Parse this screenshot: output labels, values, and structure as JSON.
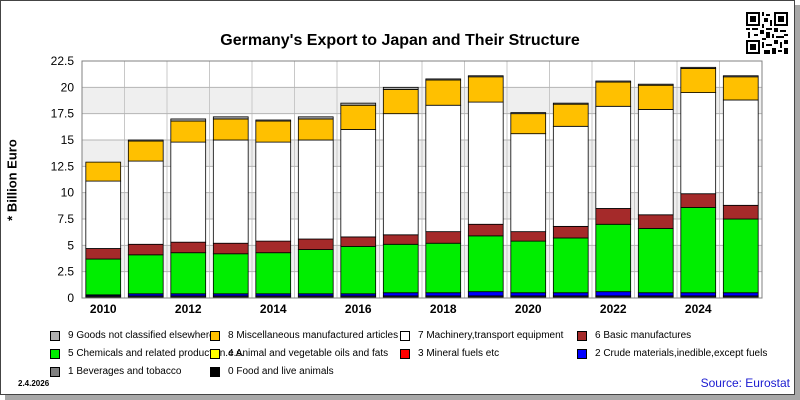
{
  "colors": {
    "cat9": "#b0b0b0",
    "cat8": "#ffc000",
    "cat7": "#ffffff",
    "cat6": "#a52a2a",
    "cat5": "#00ee00",
    "cat4": "#ffff00",
    "cat3": "#ff0000",
    "cat2": "#0000ff",
    "cat1": "#808080",
    "cat0": "#000000",
    "source": "#1a1ad0"
  },
  "footer": {
    "date": "2.4.2026",
    "source": "Source: Eurostat"
  },
  "qr_icon": "qr-code-icon",
  "chart_data": {
    "type": "bar",
    "stacked": true,
    "title": "Germany's Export to Japan and Their Structure",
    "ylabel": "* Billion Euro",
    "xlabel": "",
    "ylim": [
      0,
      22.5
    ],
    "yticks": [
      0,
      2.5,
      5,
      7.5,
      10,
      12.5,
      15,
      17.5,
      20,
      22.5
    ],
    "grid": true,
    "legend_position": "bottom",
    "categories": [
      "2010",
      "2011",
      "2012",
      "2013",
      "2014",
      "2015",
      "2016",
      "2017",
      "2018",
      "2019",
      "2020",
      "2021",
      "2022",
      "2023",
      "2024",
      "2025"
    ],
    "x_tick_labels": [
      "2010",
      "",
      "2012",
      "",
      "2014",
      "",
      "2016",
      "",
      "2018",
      "",
      "2020",
      "",
      "2022",
      "",
      "2024",
      ""
    ],
    "series": [
      {
        "name": "0 Food and live animals",
        "key": "cat0",
        "values": [
          0.1,
          0.1,
          0.1,
          0.1,
          0.1,
          0.1,
          0.1,
          0.1,
          0.1,
          0.1,
          0.1,
          0.1,
          0.1,
          0.1,
          0.1,
          0.1
        ]
      },
      {
        "name": "1 Beverages and tobacco",
        "key": "cat1",
        "values": [
          0.1,
          0.1,
          0.1,
          0.1,
          0.1,
          0.1,
          0.1,
          0.1,
          0.1,
          0.1,
          0.1,
          0.1,
          0.1,
          0.1,
          0.1,
          0.1
        ]
      },
      {
        "name": "2 Crude materials,inedible,except fuels",
        "key": "cat2",
        "values": [
          0.1,
          0.2,
          0.2,
          0.2,
          0.2,
          0.2,
          0.2,
          0.3,
          0.3,
          0.4,
          0.3,
          0.3,
          0.4,
          0.3,
          0.3,
          0.3
        ]
      },
      {
        "name": "3 Mineral fuels etc",
        "key": "cat3",
        "values": [
          0,
          0,
          0,
          0,
          0,
          0,
          0,
          0,
          0,
          0,
          0,
          0,
          0,
          0,
          0,
          0
        ]
      },
      {
        "name": "4 Animal and vegetable oils and fats",
        "key": "cat4",
        "values": [
          0,
          0,
          0,
          0,
          0,
          0,
          0,
          0,
          0,
          0,
          0,
          0,
          0,
          0,
          0,
          0
        ]
      },
      {
        "name": "5 Chemicals and related products,n.e.s.",
        "key": "cat5",
        "values": [
          3.4,
          3.7,
          3.9,
          3.8,
          3.9,
          4.2,
          4.5,
          4.6,
          4.7,
          5.3,
          4.9,
          5.2,
          6.4,
          6.1,
          8.1,
          7.0
        ]
      },
      {
        "name": "6 Basic manufactures",
        "key": "cat6",
        "values": [
          1.0,
          1.0,
          1.0,
          1.0,
          1.1,
          1.0,
          0.9,
          0.9,
          1.1,
          1.1,
          0.9,
          1.1,
          1.5,
          1.3,
          1.3,
          1.3
        ]
      },
      {
        "name": "7 Machinery,transport equipment",
        "key": "cat7",
        "values": [
          6.4,
          7.9,
          9.5,
          9.8,
          9.4,
          9.4,
          10.2,
          11.5,
          12.0,
          11.6,
          9.3,
          9.5,
          9.7,
          10.0,
          9.6,
          10.0
        ]
      },
      {
        "name": "8 Miscellaneous manufactured articles",
        "key": "cat8",
        "values": [
          1.8,
          1.9,
          2.0,
          2.0,
          2.0,
          2.0,
          2.3,
          2.3,
          2.4,
          2.4,
          1.9,
          2.1,
          2.3,
          2.3,
          2.3,
          2.2
        ]
      },
      {
        "name": "9 Goods not classified elsewhere",
        "key": "cat9",
        "values": [
          0,
          0.1,
          0.2,
          0.2,
          0.1,
          0.2,
          0.2,
          0.2,
          0.1,
          0.1,
          0.1,
          0.1,
          0.1,
          0.1,
          0.1,
          0.1
        ]
      }
    ]
  }
}
